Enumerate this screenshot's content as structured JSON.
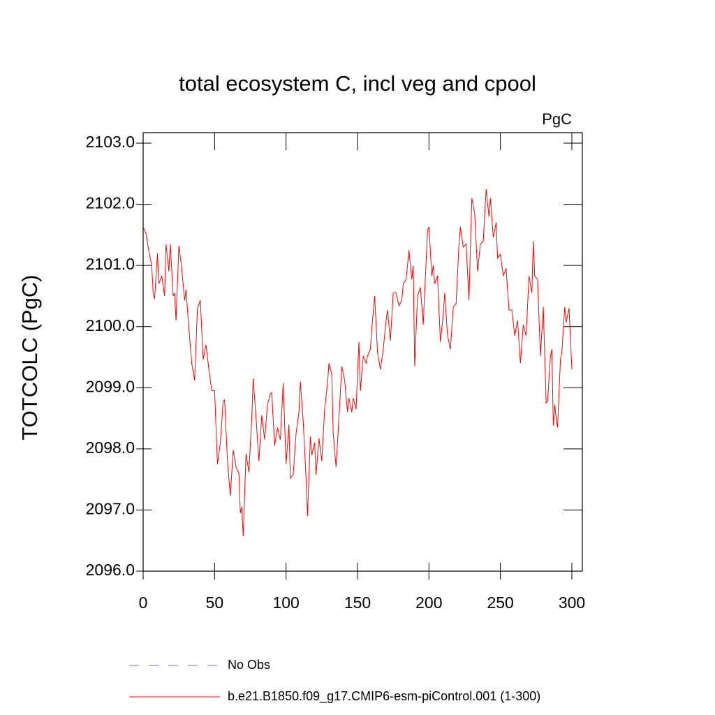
{
  "chart_data": {
    "type": "line",
    "title": "total ecosystem C, incl veg and cpool",
    "unit_label": "PgC",
    "y_label": "TOTCOLC  (PgC)",
    "xlim": [
      0,
      300
    ],
    "xticks": [
      0,
      50,
      100,
      150,
      200,
      250,
      300
    ],
    "ylim": [
      2096,
      2103
    ],
    "yticks": [
      {
        "value": 2096,
        "label": "2096.0"
      },
      {
        "value": 2097,
        "label": "2097.0"
      },
      {
        "value": 2098,
        "label": "2098.0"
      },
      {
        "value": 2099,
        "label": "2099.0"
      },
      {
        "value": 2100,
        "label": "2100.0"
      },
      {
        "value": 2101,
        "label": "2101.0"
      },
      {
        "value": 2102,
        "label": "2102.0"
      },
      {
        "value": 2103,
        "label": "2103.0"
      }
    ],
    "series": [
      {
        "name": "No Obs",
        "color": "#6b6bd6",
        "dashed": true,
        "x": [],
        "values": []
      },
      {
        "name": "b.e21.B1850.f09_g17.CMIP6-esm-piControl.001 (1-300)",
        "color": "#ff0000",
        "dashed": false,
        "x": [
          0,
          2,
          4,
          6,
          7,
          8,
          10,
          11,
          13,
          15,
          16,
          18,
          19,
          21,
          22,
          23,
          25,
          27,
          29,
          30,
          32,
          34,
          36,
          38,
          40,
          42,
          44,
          46,
          48,
          50,
          52,
          54,
          56,
          57,
          59,
          61,
          63,
          65,
          67,
          68,
          69,
          70,
          72,
          74,
          76,
          77,
          79,
          81,
          83,
          85,
          87,
          89,
          90,
          92,
          94,
          96,
          98,
          100,
          102,
          103,
          105,
          107,
          109,
          110,
          112,
          114,
          115,
          117,
          118,
          120,
          121,
          123,
          125,
          127,
          129,
          130,
          132,
          133,
          135,
          137,
          139,
          141,
          143,
          144,
          146,
          147,
          149,
          151,
          152,
          154,
          156,
          157,
          159,
          160,
          162,
          164,
          166,
          168,
          170,
          171,
          173,
          175,
          177,
          179,
          181,
          182,
          184,
          186,
          188,
          189,
          190,
          192,
          194,
          196,
          198,
          199,
          200,
          202,
          203,
          204,
          206,
          208,
          210,
          211,
          213,
          215,
          217,
          219,
          221,
          222,
          224,
          226,
          228,
          229,
          230,
          232,
          234,
          236,
          238,
          240,
          242,
          243,
          245,
          247,
          248,
          250,
          252,
          254,
          256,
          258,
          260,
          262,
          264,
          266,
          268,
          270,
          272,
          273,
          274,
          276,
          278,
          280,
          282,
          283,
          285,
          286,
          287,
          288,
          289,
          290,
          292,
          293,
          295,
          296,
          298,
          300
        ],
        "values": [
          2101.63,
          2101.52,
          2101.23,
          2101.0,
          2100.55,
          2100.45,
          2101.2,
          2100.7,
          2100.83,
          2100.5,
          2101.35,
          2100.9,
          2101.35,
          2100.5,
          2100.55,
          2100.1,
          2101.32,
          2100.95,
          2100.43,
          2100.6,
          2099.97,
          2099.4,
          2099.12,
          2100.3,
          2100.43,
          2099.46,
          2099.7,
          2099.3,
          2098.95,
          2098.95,
          2097.75,
          2098.1,
          2098.78,
          2098.8,
          2097.8,
          2097.23,
          2097.98,
          2097.7,
          2097.6,
          2096.95,
          2097.05,
          2096.57,
          2097.92,
          2097.62,
          2098.5,
          2099.15,
          2098.5,
          2097.8,
          2098.55,
          2098.15,
          2098.72,
          2098.9,
          2098.92,
          2098.05,
          2098.35,
          2098.15,
          2099.08,
          2097.75,
          2098.4,
          2097.52,
          2097.58,
          2098.25,
          2098.6,
          2099.1,
          2098.45,
          2097.52,
          2096.9,
          2098.2,
          2097.9,
          2098.1,
          2097.58,
          2098.17,
          2097.8,
          2098.65,
          2099.07,
          2099.4,
          2099.22,
          2098.25,
          2097.7,
          2098.5,
          2099.35,
          2099.12,
          2098.6,
          2098.83,
          2098.6,
          2098.83,
          2098.65,
          2099.75,
          2098.95,
          2099.52,
          2099.4,
          2099.52,
          2099.63,
          2099.97,
          2100.5,
          2099.58,
          2099.3,
          2099.63,
          2100.1,
          2100.27,
          2099.77,
          2100.55,
          2100.55,
          2100.34,
          2100.43,
          2100.7,
          2100.77,
          2101.25,
          2100.77,
          2101.0,
          2099.35,
          2100.5,
          2100.64,
          2100.03,
          2101.06,
          2101.57,
          2101.63,
          2100.83,
          2101.0,
          2100.7,
          2100.83,
          2099.75,
          2100.2,
          2100.55,
          2099.85,
          2099.63,
          2100.32,
          2100.38,
          2101.35,
          2101.63,
          2101.3,
          2101.35,
          2100.43,
          2101.3,
          2102.1,
          2101.85,
          2100.9,
          2101.35,
          2101.4,
          2102.25,
          2101.8,
          2102.1,
          2101.46,
          2101.7,
          2101.12,
          2101.18,
          2100.83,
          2100.95,
          2100.27,
          2100.27,
          2099.85,
          2100.1,
          2099.4,
          2100.03,
          2099.85,
          2100.83,
          2100.55,
          2101.4,
          2100.83,
          2100.77,
          2099.52,
          2100.32,
          2098.75,
          2098.78,
          2099.52,
          2099.63,
          2098.38,
          2098.72,
          2098.5,
          2098.35,
          2099.46,
          2099.58,
          2100.32,
          2100.07,
          2100.3,
          2099.3
        ]
      }
    ]
  }
}
